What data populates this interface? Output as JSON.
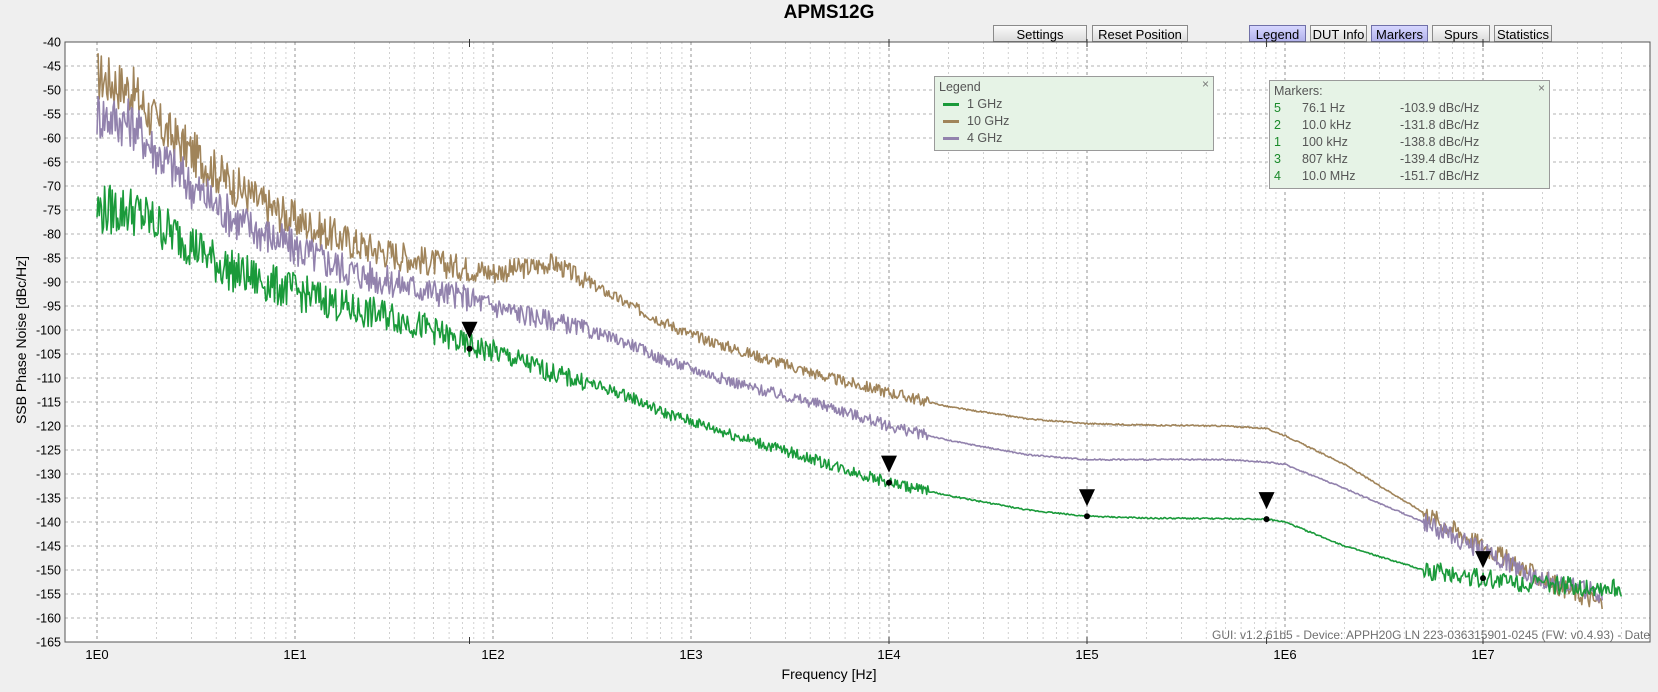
{
  "title": "APMS12G",
  "toolbar": {
    "settings": "Settings",
    "reset": "Reset Position",
    "legend": "Legend",
    "dut": "DUT Info",
    "markers": "Markers",
    "spurs": "Spurs",
    "statistics": "Statistics"
  },
  "legend_panel": {
    "title": "Legend",
    "close": "×",
    "entries": [
      {
        "label": "1 GHz",
        "color": "#1a9a3a"
      },
      {
        "label": "10 GHz",
        "color": "#a0845a"
      },
      {
        "label": "4 GHz",
        "color": "#9282ad"
      }
    ]
  },
  "markers_panel": {
    "title": "Markers:",
    "close": "×",
    "rows": [
      {
        "id": "5",
        "freq": "76.1 Hz",
        "value": "-103.9 dBc/Hz"
      },
      {
        "id": "2",
        "freq": "10.0 kHz",
        "value": "-131.8 dBc/Hz"
      },
      {
        "id": "1",
        "freq": "100 kHz",
        "value": "-138.8 dBc/Hz"
      },
      {
        "id": "3",
        "freq": "807 kHz",
        "value": "-139.4 dBc/Hz"
      },
      {
        "id": "4",
        "freq": "10.0 MHz",
        "value": "-151.7 dBc/Hz"
      }
    ]
  },
  "footer": "GUI: v1.2.61b5 - Device: APPH20G LN 223-036315901-0245 (FW: v0.4.93) - Date",
  "chart_data": {
    "type": "line",
    "xlabel": "Frequency [Hz]",
    "ylabel": "SSB Phase Noise [dBc/Hz]",
    "x_scale": "log",
    "xlim": [
      1,
      50000000
    ],
    "ylim": [
      -165,
      -40
    ],
    "x_ticks": [
      {
        "value": 1,
        "label": "1E0"
      },
      {
        "value": 10,
        "label": "1E1"
      },
      {
        "value": 100,
        "label": "1E2"
      },
      {
        "value": 1000,
        "label": "1E3"
      },
      {
        "value": 10000,
        "label": "1E4"
      },
      {
        "value": 100000,
        "label": "1E5"
      },
      {
        "value": 1000000,
        "label": "1E6"
      },
      {
        "value": 10000000,
        "label": "1E7"
      }
    ],
    "y_ticks": [
      -40,
      -45,
      -50,
      -55,
      -60,
      -65,
      -70,
      -75,
      -80,
      -85,
      -90,
      -95,
      -100,
      -105,
      -110,
      -115,
      -120,
      -125,
      -130,
      -135,
      -140,
      -145,
      -150,
      -155,
      -160,
      -165
    ],
    "grid": true,
    "series": [
      {
        "name": "10 GHz",
        "color": "#a0845a",
        "x": [
          1,
          1.5,
          2,
          3,
          4,
          5,
          7,
          10,
          15,
          20,
          30,
          50,
          70,
          100,
          150,
          200,
          300,
          500,
          700,
          1000,
          2000,
          5000,
          10000,
          20000,
          50000,
          100000,
          200000,
          500000,
          800000,
          1000000,
          2000000,
          5000000,
          10000000,
          20000000,
          40000000
        ],
        "y": [
          -47,
          -50,
          -57,
          -63,
          -67,
          -70,
          -74,
          -77,
          -80,
          -82,
          -84,
          -86,
          -87,
          -88,
          -87,
          -86,
          -90,
          -95,
          -98,
          -101,
          -105,
          -110,
          -113,
          -116,
          -118.5,
          -119.5,
          -119.8,
          -120,
          -120.5,
          -122,
          -128,
          -138,
          -145,
          -152,
          -157
        ]
      },
      {
        "name": "4 GHz",
        "color": "#9282ad",
        "x": [
          1,
          1.5,
          2,
          3,
          4,
          5,
          7,
          10,
          15,
          20,
          30,
          50,
          70,
          100,
          150,
          200,
          300,
          500,
          700,
          1000,
          2000,
          5000,
          10000,
          20000,
          50000,
          100000,
          200000,
          500000,
          800000,
          1000000,
          2000000,
          5000000,
          10000000,
          20000000,
          40000000
        ],
        "y": [
          -55,
          -57,
          -63,
          -70,
          -74,
          -77,
          -80,
          -83,
          -86,
          -88,
          -90,
          -92,
          -93,
          -95,
          -97,
          -98,
          -100,
          -103,
          -106,
          -108,
          -112,
          -116,
          -120,
          -123,
          -126,
          -127,
          -127,
          -127,
          -127.5,
          -128,
          -133,
          -140,
          -146,
          -152,
          -155
        ]
      },
      {
        "name": "1 GHz",
        "color": "#1a9a3a",
        "x": [
          1,
          1.5,
          2,
          3,
          4,
          5,
          7,
          10,
          15,
          20,
          30,
          50,
          70,
          100,
          150,
          200,
          300,
          500,
          700,
          1000,
          2000,
          5000,
          10000,
          20000,
          50000,
          100000,
          200000,
          500000,
          800000,
          1000000,
          2000000,
          5000000,
          10000000,
          20000000,
          50000000
        ],
        "y": [
          -75,
          -75,
          -78,
          -82,
          -86,
          -88,
          -90,
          -92,
          -94,
          -96,
          -97,
          -100,
          -103,
          -104.5,
          -107,
          -109,
          -111,
          -114,
          -117,
          -119,
          -123,
          -128,
          -131.8,
          -134.5,
          -137.5,
          -138.8,
          -139.2,
          -139.3,
          -139.4,
          -140,
          -145,
          -150,
          -151.7,
          -153,
          -154
        ]
      }
    ],
    "markers": [
      {
        "id": "5",
        "x": 76.1,
        "y": -103.9
      },
      {
        "id": "2",
        "x": 10000,
        "y": -131.8
      },
      {
        "id": "1",
        "x": 100000,
        "y": -138.8
      },
      {
        "id": "3",
        "x": 807000,
        "y": -139.4
      },
      {
        "id": "4",
        "x": 10000000,
        "y": -151.7
      }
    ]
  }
}
